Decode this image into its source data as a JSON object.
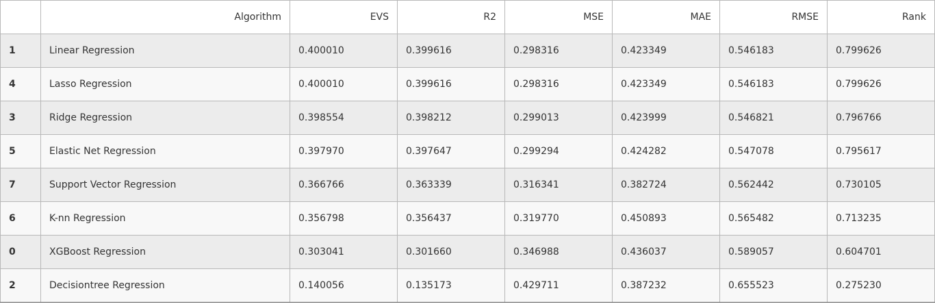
{
  "table": {
    "columns": [
      "",
      "Algorithm",
      "EVS",
      "R2",
      "MSE",
      "MAE",
      "RMSE",
      "Rank"
    ],
    "rows": [
      {
        "index": "1",
        "algorithm": "Linear Regression",
        "evs": "0.400010",
        "r2": "0.399616",
        "mse": "0.298316",
        "mae": "0.423349",
        "rmse": "0.546183",
        "rank": "0.799626"
      },
      {
        "index": "4",
        "algorithm": "Lasso Regression",
        "evs": "0.400010",
        "r2": "0.399616",
        "mse": "0.298316",
        "mae": "0.423349",
        "rmse": "0.546183",
        "rank": "0.799626"
      },
      {
        "index": "3",
        "algorithm": "Ridge Regression",
        "evs": "0.398554",
        "r2": "0.398212",
        "mse": "0.299013",
        "mae": "0.423999",
        "rmse": "0.546821",
        "rank": "0.796766"
      },
      {
        "index": "5",
        "algorithm": "Elastic Net Regression",
        "evs": "0.397970",
        "r2": "0.397647",
        "mse": "0.299294",
        "mae": "0.424282",
        "rmse": "0.547078",
        "rank": "0.795617"
      },
      {
        "index": "7",
        "algorithm": "Support Vector Regression",
        "evs": "0.366766",
        "r2": "0.363339",
        "mse": "0.316341",
        "mae": "0.382724",
        "rmse": "0.562442",
        "rank": "0.730105"
      },
      {
        "index": "6",
        "algorithm": "K-nn Regression",
        "evs": "0.356798",
        "r2": "0.356437",
        "mse": "0.319770",
        "mae": "0.450893",
        "rmse": "0.565482",
        "rank": "0.713235"
      },
      {
        "index": "0",
        "algorithm": "XGBoost Regression",
        "evs": "0.303041",
        "r2": "0.301660",
        "mse": "0.346988",
        "mae": "0.436037",
        "rmse": "0.589057",
        "rank": "0.604701"
      },
      {
        "index": "2",
        "algorithm": "Decisiontree Regression",
        "evs": "0.140056",
        "r2": "0.135173",
        "mse": "0.429711",
        "mae": "0.387232",
        "rmse": "0.655523",
        "rank": "0.275230"
      }
    ]
  }
}
